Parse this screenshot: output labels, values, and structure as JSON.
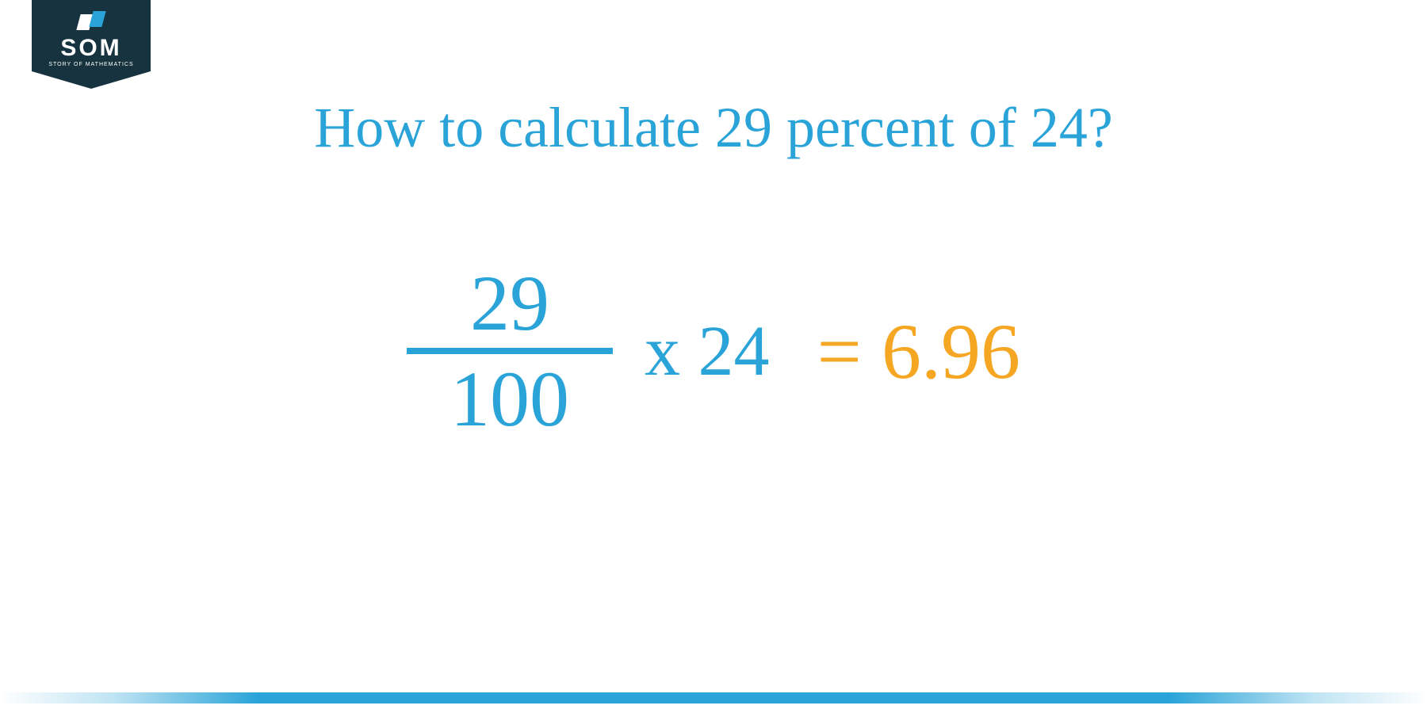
{
  "colors": {
    "primary_blue": "#2aa4d8",
    "accent_orange": "#f5a623",
    "logo_bg": "#16333f",
    "white": "#ffffff"
  },
  "logo": {
    "text": "SOM",
    "subtext": "STORY OF MATHEMATICS"
  },
  "title": "How to calculate 29 percent of 24?",
  "equation": {
    "numerator": "29",
    "denominator": "100",
    "operator": "x",
    "multiplicand": "24",
    "equals": "=",
    "result": "6.96"
  },
  "typography": {
    "title_fontsize": 72,
    "equation_fontsize": 100,
    "fraction_bar_width": 260
  }
}
